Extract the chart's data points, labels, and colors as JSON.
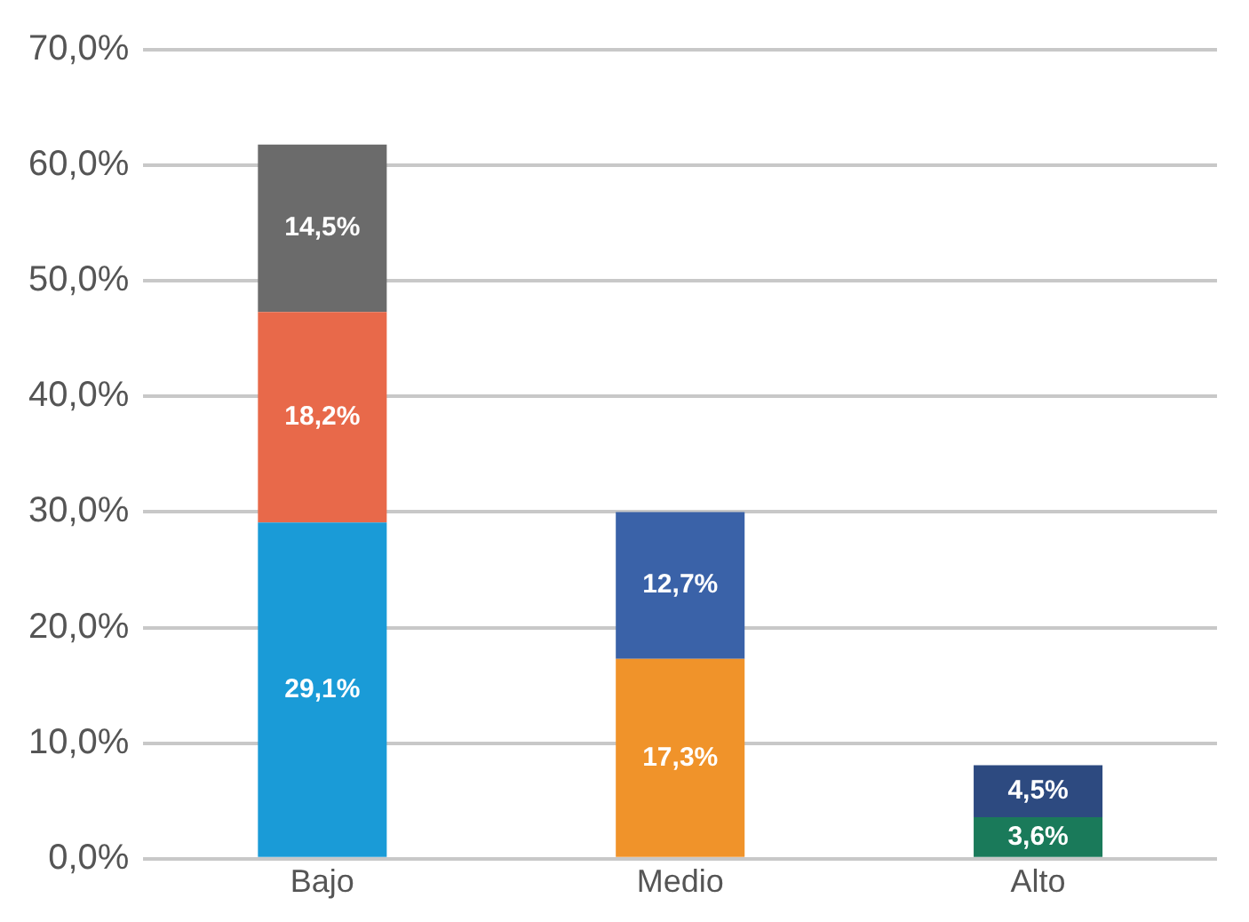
{
  "chart_data": {
    "type": "bar",
    "stacked": true,
    "categories": [
      "Bajo",
      "Medio",
      "Alto"
    ],
    "series": [
      {
        "colors": [
          "#1a9bd7",
          "#f0932a",
          "#1a7a5a"
        ],
        "values": [
          29.1,
          17.3,
          3.6
        ],
        "value_labels": [
          "29,1%",
          "17,3%",
          "3,6%"
        ]
      },
      {
        "colors": [
          "#e8694a",
          "#3a62a8",
          "#2d4a80"
        ],
        "values": [
          18.2,
          12.7,
          4.5
        ],
        "value_labels": [
          "18,2%",
          "12,7%",
          "4,5%"
        ]
      },
      {
        "colors": [
          "#6b6b6b",
          null,
          null
        ],
        "values": [
          14.5,
          null,
          null
        ],
        "value_labels": [
          "14,5%",
          null,
          null
        ]
      }
    ],
    "ylim": [
      0,
      70
    ],
    "yticks": [
      {
        "value": 0,
        "label": "0,0%"
      },
      {
        "value": 10,
        "label": "10,0%"
      },
      {
        "value": 20,
        "label": "20,0%"
      },
      {
        "value": 30,
        "label": "30,0%"
      },
      {
        "value": 40,
        "label": "40,0%"
      },
      {
        "value": 50,
        "label": "50,0%"
      },
      {
        "value": 60,
        "label": "60,0%"
      },
      {
        "value": 70,
        "label": "70,0%"
      }
    ],
    "grid": "y",
    "legend": false
  }
}
